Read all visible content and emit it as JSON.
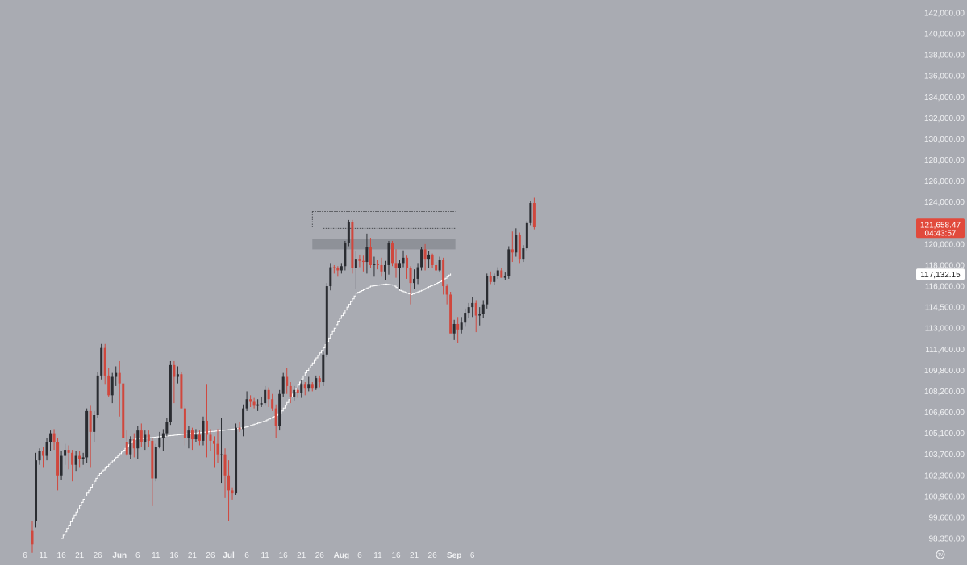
{
  "chart_data": {
    "type": "candlestick",
    "title": "",
    "xlabel": "",
    "ylabel": "",
    "y_axis_side": "right",
    "grid": false,
    "colors": {
      "background": "#a9abb2",
      "up": "#2a2c31",
      "down": "#d0473d",
      "moving_average": "#ffffff",
      "zone": "#8a8c93",
      "price_tag": "#e14a3c",
      "axis_text": "#f2f3f5",
      "level_line": "#3a3c40"
    },
    "y_ticks": [
      {
        "label": "142,000.00",
        "value": 142000
      },
      {
        "label": "140,000.00",
        "value": 140000
      },
      {
        "label": "138,000.00",
        "value": 138000
      },
      {
        "label": "136,000.00",
        "value": 136000
      },
      {
        "label": "134,000.00",
        "value": 134000
      },
      {
        "label": "132,000.00",
        "value": 132000
      },
      {
        "label": "130,000.00",
        "value": 130000
      },
      {
        "label": "128,000.00",
        "value": 128000
      },
      {
        "label": "126,000.00",
        "value": 126000
      },
      {
        "label": "124,000.00",
        "value": 124000
      },
      {
        "label": "122,000.00",
        "value": 122000
      },
      {
        "label": "120,000.00",
        "value": 120000
      },
      {
        "label": "118,000.00",
        "value": 118000
      },
      {
        "label": "116,000.00",
        "value": 116000
      },
      {
        "label": "114,500.00",
        "value": 114500
      },
      {
        "label": "113,000.00",
        "value": 113000
      },
      {
        "label": "111,400.00",
        "value": 111400
      },
      {
        "label": "109,800.00",
        "value": 109800
      },
      {
        "label": "108,200.00",
        "value": 108200
      },
      {
        "label": "106,600.00",
        "value": 106600
      },
      {
        "label": "105,100.00",
        "value": 105100
      },
      {
        "label": "103,700.00",
        "value": 103700
      },
      {
        "label": "102,300.00",
        "value": 102300
      },
      {
        "label": "100,900.00",
        "value": 100900
      },
      {
        "label": "99,600.00",
        "value": 99600
      },
      {
        "label": "98,350.00",
        "value": 98350
      }
    ],
    "x_ticks": [
      {
        "label": "6",
        "day": -2,
        "bold": false
      },
      {
        "label": "11",
        "day": 3,
        "bold": false
      },
      {
        "label": "16",
        "day": 8,
        "bold": false
      },
      {
        "label": "21",
        "day": 13,
        "bold": false
      },
      {
        "label": "26",
        "day": 18,
        "bold": false
      },
      {
        "label": "Jun",
        "day": 24,
        "bold": true
      },
      {
        "label": "6",
        "day": 29,
        "bold": false
      },
      {
        "label": "11",
        "day": 34,
        "bold": false
      },
      {
        "label": "16",
        "day": 39,
        "bold": false
      },
      {
        "label": "21",
        "day": 44,
        "bold": false
      },
      {
        "label": "26",
        "day": 49,
        "bold": false
      },
      {
        "label": "Jul",
        "day": 54,
        "bold": true
      },
      {
        "label": "6",
        "day": 59,
        "bold": false
      },
      {
        "label": "11",
        "day": 64,
        "bold": false
      },
      {
        "label": "16",
        "day": 69,
        "bold": false
      },
      {
        "label": "21",
        "day": 74,
        "bold": false
      },
      {
        "label": "26",
        "day": 79,
        "bold": false
      },
      {
        "label": "Aug",
        "day": 85,
        "bold": true
      },
      {
        "label": "6",
        "day": 90,
        "bold": false
      },
      {
        "label": "11",
        "day": 95,
        "bold": false
      },
      {
        "label": "16",
        "day": 100,
        "bold": false
      },
      {
        "label": "21",
        "day": 105,
        "bold": false
      },
      {
        "label": "26",
        "day": 110,
        "bold": false
      },
      {
        "label": "Sep",
        "day": 116,
        "bold": true
      },
      {
        "label": "6",
        "day": 121,
        "bold": false
      }
    ],
    "candles": [
      [
        98800,
        97500,
        98000,
        99400
      ],
      [
        99400,
        99000,
        103300,
        103800
      ],
      [
        103300,
        103000,
        103900,
        104100
      ],
      [
        103900,
        102800,
        103600,
        104200
      ],
      [
        103600,
        103300,
        104500,
        104800
      ],
      [
        104500,
        103900,
        105100,
        105300
      ],
      [
        105100,
        104000,
        104500,
        105400
      ],
      [
        104500,
        101300,
        102300,
        104800
      ],
      [
        102300,
        102000,
        103600,
        103900
      ],
      [
        103600,
        103000,
        104000,
        104400
      ],
      [
        104000,
        102700,
        103800,
        104300
      ],
      [
        103800,
        101900,
        103000,
        104000
      ],
      [
        103000,
        102600,
        103600,
        103900
      ],
      [
        103600,
        102800,
        103400,
        103900
      ],
      [
        103400,
        103000,
        103500,
        103800
      ],
      [
        103500,
        103100,
        106700,
        106900
      ],
      [
        106700,
        102800,
        105200,
        107100
      ],
      [
        105200,
        104500,
        106400,
        106700
      ],
      [
        106400,
        106200,
        109400,
        109700
      ],
      [
        109400,
        109100,
        111500,
        111800
      ],
      [
        111500,
        108700,
        109400,
        111800
      ],
      [
        109400,
        107800,
        107900,
        110000
      ],
      [
        107900,
        107300,
        109300,
        109600
      ],
      [
        109300,
        108600,
        109600,
        110100
      ],
      [
        109600,
        106300,
        108800,
        110500
      ],
      [
        108800,
        105100,
        104800,
        108300
      ],
      [
        104500,
        103600,
        103700,
        105300
      ],
      [
        103700,
        103400,
        104700,
        104900
      ],
      [
        104700,
        103500,
        104100,
        105100
      ],
      [
        104100,
        103400,
        105300,
        105600
      ],
      [
        105300,
        104200,
        104500,
        105800
      ],
      [
        104500,
        104000,
        105000,
        105300
      ],
      [
        105000,
        104200,
        104600,
        105300
      ],
      [
        104600,
        100300,
        102100,
        104800
      ],
      [
        102100,
        101900,
        104200,
        104400
      ],
      [
        104200,
        104100,
        104800,
        105200
      ],
      [
        104800,
        103900,
        105100,
        105400
      ],
      [
        105100,
        104900,
        105900,
        106200
      ],
      [
        105900,
        105700,
        110200,
        110500
      ],
      [
        110200,
        107300,
        109300,
        110500
      ],
      [
        109300,
        108800,
        109500,
        110100
      ],
      [
        109500,
        107300,
        106900,
        109700
      ],
      [
        106900,
        104300,
        104800,
        107100
      ],
      [
        104800,
        104100,
        105300,
        105600
      ],
      [
        105300,
        104000,
        104700,
        105500
      ],
      [
        104700,
        104500,
        105000,
        105400
      ],
      [
        105000,
        104300,
        104600,
        105300
      ],
      [
        104600,
        104300,
        106000,
        106300
      ],
      [
        106000,
        103500,
        105000,
        108700
      ],
      [
        105000,
        103900,
        104600,
        105400
      ],
      [
        104600,
        102800,
        104400,
        104900
      ],
      [
        104400,
        103100,
        103700,
        105400
      ],
      [
        103700,
        101800,
        103700,
        106200
      ],
      [
        103700,
        100800,
        102300,
        104100
      ],
      [
        102300,
        99400,
        101300,
        103300
      ],
      [
        101300,
        100700,
        101100,
        101500
      ],
      [
        101100,
        101000,
        105500,
        105800
      ],
      [
        105500,
        105200,
        105400,
        105900
      ],
      [
        105400,
        104900,
        106900,
        107200
      ],
      [
        106900,
        106700,
        107600,
        108200
      ],
      [
        107600,
        107000,
        107400,
        107900
      ],
      [
        107400,
        106900,
        107100,
        107700
      ],
      [
        107100,
        106700,
        107200,
        107600
      ],
      [
        107200,
        107000,
        107300,
        107800
      ],
      [
        107300,
        107100,
        108300,
        108600
      ],
      [
        108300,
        107000,
        107600,
        108500
      ],
      [
        107600,
        106700,
        106900,
        108000
      ],
      [
        106900,
        104800,
        105600,
        107200
      ],
      [
        105600,
        105300,
        108000,
        108300
      ],
      [
        108000,
        107800,
        109300,
        109600
      ],
      [
        109300,
        108000,
        108600,
        110000
      ],
      [
        108600,
        107300,
        107800,
        108900
      ],
      [
        107800,
        107500,
        108300,
        108600
      ],
      [
        108300,
        107700,
        108100,
        108500
      ],
      [
        108100,
        107700,
        108700,
        109100
      ],
      [
        108700,
        107900,
        108400,
        108900
      ],
      [
        108400,
        108200,
        108700,
        109300
      ],
      [
        108700,
        108200,
        108400,
        108900
      ],
      [
        108400,
        108300,
        109200,
        109400
      ],
      [
        109200,
        108500,
        108900,
        109400
      ],
      [
        108900,
        108600,
        111000,
        111200
      ],
      [
        111000,
        110800,
        116000,
        116300
      ],
      [
        116000,
        115700,
        117800,
        118200
      ],
      [
        117800,
        117200,
        117700,
        118000
      ],
      [
        117700,
        116900,
        117500,
        117900
      ],
      [
        117500,
        117200,
        117900,
        118200
      ],
      [
        117900,
        117500,
        120100,
        120300
      ],
      [
        120100,
        119800,
        122100,
        122300
      ],
      [
        122100,
        117200,
        117700,
        122300
      ],
      [
        117700,
        115800,
        118600,
        119300
      ],
      [
        118600,
        117800,
        118400,
        119000
      ],
      [
        118400,
        117400,
        118300,
        118900
      ],
      [
        118300,
        117200,
        119700,
        121000
      ],
      [
        119700,
        117700,
        118000,
        120600
      ],
      [
        118000,
        116900,
        118100,
        118800
      ],
      [
        118100,
        117600,
        118000,
        118500
      ],
      [
        118000,
        116900,
        117400,
        118700
      ],
      [
        117400,
        116600,
        118000,
        118400
      ],
      [
        118000,
        117100,
        120100,
        120300
      ],
      [
        120100,
        117900,
        118200,
        120300
      ],
      [
        118200,
        116800,
        117700,
        119500
      ],
      [
        117700,
        115800,
        118200,
        118500
      ],
      [
        118200,
        117800,
        118700,
        119400
      ],
      [
        118700,
        116700,
        117700,
        118900
      ],
      [
        117700,
        114700,
        116300,
        117900
      ],
      [
        116300,
        115800,
        116700,
        117600
      ],
      [
        116700,
        116200,
        117800,
        118200
      ],
      [
        117800,
        117500,
        119500,
        119700
      ],
      [
        119500,
        117500,
        118600,
        120000
      ],
      [
        118600,
        117700,
        119000,
        119300
      ],
      [
        119000,
        117700,
        118000,
        119100
      ],
      [
        118000,
        117500,
        117500,
        118300
      ],
      [
        117500,
        117300,
        118500,
        118800
      ],
      [
        118500,
        115400,
        116000,
        118700
      ],
      [
        116000,
        114700,
        115400,
        116200
      ],
      [
        115400,
        113600,
        112600,
        115600
      ],
      [
        112600,
        112100,
        113300,
        113600
      ],
      [
        113300,
        111900,
        112900,
        113800
      ],
      [
        112900,
        112600,
        113400,
        113800
      ],
      [
        113400,
        113100,
        114100,
        114400
      ],
      [
        114100,
        113700,
        114500,
        114800
      ],
      [
        114500,
        113800,
        114800,
        115200
      ],
      [
        114800,
        112700,
        113900,
        115000
      ],
      [
        113900,
        113200,
        114000,
        114500
      ],
      [
        114000,
        113700,
        114700,
        115000
      ],
      [
        114700,
        114400,
        117000,
        117200
      ],
      [
        117000,
        116200,
        116400,
        117400
      ],
      [
        116400,
        116100,
        117000,
        117200
      ],
      [
        117000,
        116700,
        117500,
        117800
      ],
      [
        117500,
        116800,
        116800,
        117700
      ],
      [
        116800,
        116600,
        117000,
        117300
      ],
      [
        117000,
        116700,
        119500,
        119800
      ],
      [
        119500,
        118300,
        119200,
        121200
      ],
      [
        119200,
        118800,
        120900,
        121500
      ],
      [
        120900,
        118200,
        118600,
        121100
      ],
      [
        118600,
        118300,
        119600,
        119900
      ],
      [
        119600,
        119400,
        122000,
        122200
      ],
      [
        122000,
        121800,
        123900,
        124100
      ],
      [
        123900,
        121400,
        121600,
        124400
      ]
    ],
    "moving_average": [
      [
        8,
        98350
      ],
      [
        18,
        102300
      ],
      [
        28,
        104700
      ],
      [
        36,
        104900
      ],
      [
        44,
        105100
      ],
      [
        52,
        105300
      ],
      [
        58,
        105500
      ],
      [
        64,
        106000
      ],
      [
        68,
        106500
      ],
      [
        72,
        108200
      ],
      [
        75,
        109600
      ],
      [
        80,
        111500
      ],
      [
        84,
        113500
      ],
      [
        89,
        115500
      ],
      [
        93,
        116000
      ],
      [
        97,
        116200
      ],
      [
        99,
        116100
      ],
      [
        101,
        115700
      ],
      [
        104,
        115400
      ],
      [
        107,
        115700
      ],
      [
        110,
        116100
      ],
      [
        113,
        116600
      ],
      [
        115,
        117200
      ]
    ],
    "zone": {
      "day_start": 77,
      "day_end": 115,
      "price_low": 119500,
      "price_high": 120500
    },
    "level_lines": [
      {
        "price": 123100,
        "day_start": 77
      },
      {
        "price": 121500,
        "day_start": 80
      }
    ],
    "price_tags": [
      {
        "price_label": "121,658.47",
        "countdown": "04:43:57",
        "price": 121658.47
      },
      {
        "price_label": "117,132.15",
        "price": 117132.15
      }
    ],
    "tv_logo_text": "TV"
  }
}
